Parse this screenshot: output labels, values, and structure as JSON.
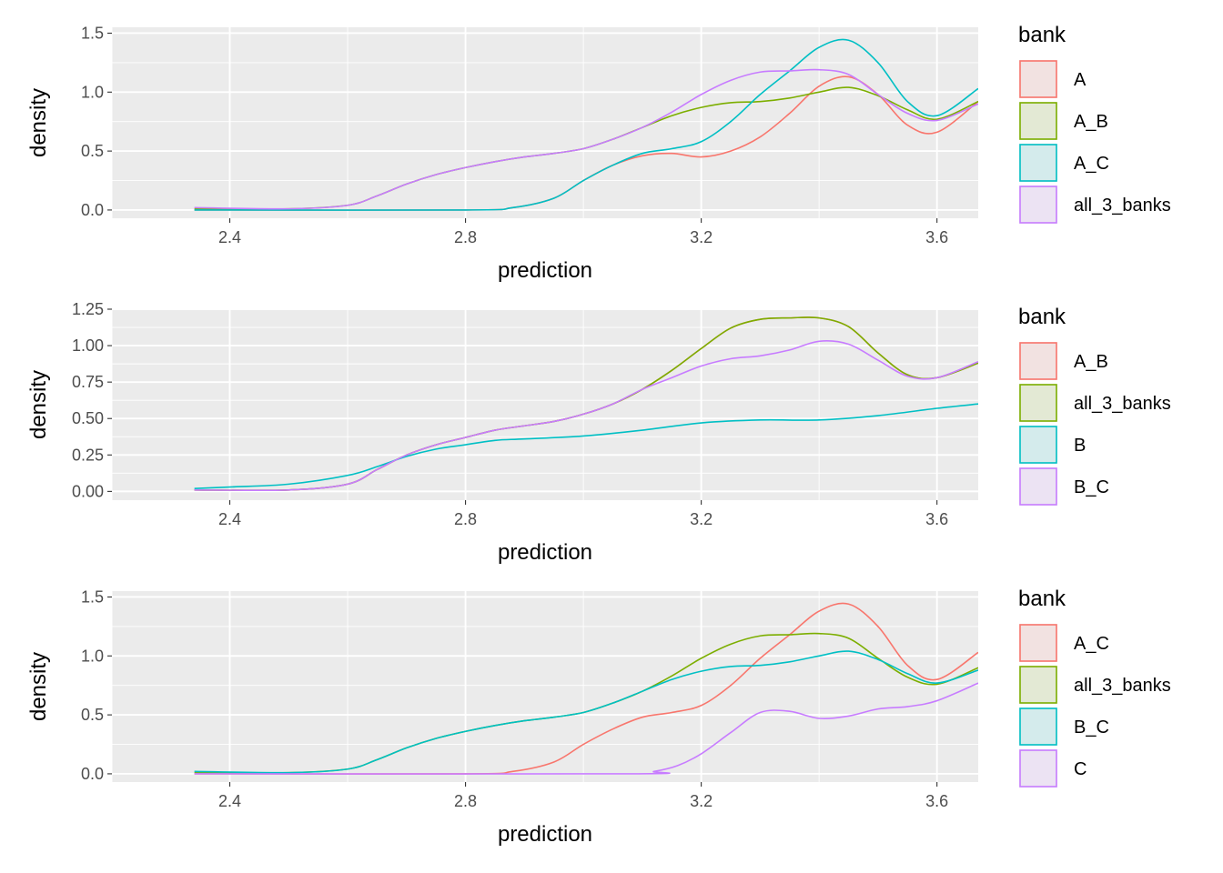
{
  "legend_title": "bank",
  "xlabel": "prediction",
  "ylabel": "density",
  "chart_data": [
    {
      "type": "line",
      "xlabel": "prediction",
      "ylabel": "density",
      "xlim": [
        2.2,
        3.67
      ],
      "ylim": [
        -0.07,
        1.55
      ],
      "x_ticks": [
        2.4,
        2.8,
        3.2,
        3.6
      ],
      "x_tick_labels": [
        "2.4",
        "2.8",
        "3.2",
        "3.6"
      ],
      "y_ticks": [
        0,
        0.5,
        1,
        1.5
      ],
      "y_tick_labels": [
        "0.0",
        "0.5",
        "1.0",
        "1.5"
      ],
      "grid": true,
      "legend_title": "bank",
      "legend_position": "right",
      "series": [
        {
          "name": "A",
          "color": "#F8766D",
          "x": [
            2.34,
            2.8,
            2.88,
            2.95,
            3.0,
            3.05,
            3.1,
            3.15,
            3.2,
            3.25,
            3.3,
            3.35,
            3.4,
            3.45,
            3.5,
            3.55,
            3.6,
            3.67
          ],
          "y": [
            0.0,
            0.0,
            0.02,
            0.1,
            0.25,
            0.38,
            0.46,
            0.48,
            0.45,
            0.5,
            0.62,
            0.82,
            1.05,
            1.13,
            0.98,
            0.72,
            0.66,
            0.92
          ]
        },
        {
          "name": "A_B",
          "color": "#7CAE00",
          "x": [
            2.34,
            2.5,
            2.6,
            2.65,
            2.7,
            2.75,
            2.8,
            2.85,
            2.9,
            2.95,
            3.0,
            3.05,
            3.1,
            3.15,
            3.2,
            3.25,
            3.3,
            3.35,
            3.4,
            3.45,
            3.5,
            3.55,
            3.6,
            3.67
          ],
          "y": [
            0.01,
            0.01,
            0.04,
            0.12,
            0.22,
            0.3,
            0.36,
            0.41,
            0.45,
            0.48,
            0.52,
            0.6,
            0.7,
            0.8,
            0.87,
            0.91,
            0.92,
            0.95,
            1.0,
            1.04,
            0.97,
            0.85,
            0.77,
            0.92
          ]
        },
        {
          "name": "A_C",
          "color": "#00BFC4",
          "x": [
            2.34,
            2.8,
            2.88,
            2.95,
            3.0,
            3.05,
            3.1,
            3.15,
            3.2,
            3.25,
            3.3,
            3.35,
            3.4,
            3.45,
            3.5,
            3.55,
            3.6,
            3.67
          ],
          "y": [
            0.0,
            0.0,
            0.02,
            0.1,
            0.25,
            0.38,
            0.48,
            0.52,
            0.58,
            0.75,
            0.98,
            1.18,
            1.38,
            1.44,
            1.25,
            0.92,
            0.8,
            1.03
          ]
        },
        {
          "name": "all_3_banks",
          "color": "#C77CFF",
          "x": [
            2.34,
            2.5,
            2.6,
            2.65,
            2.7,
            2.75,
            2.8,
            2.85,
            2.9,
            2.95,
            3.0,
            3.05,
            3.1,
            3.15,
            3.2,
            3.25,
            3.3,
            3.35,
            3.4,
            3.45,
            3.5,
            3.55,
            3.6,
            3.67
          ],
          "y": [
            0.02,
            0.01,
            0.04,
            0.12,
            0.22,
            0.3,
            0.36,
            0.41,
            0.45,
            0.48,
            0.52,
            0.6,
            0.7,
            0.83,
            0.98,
            1.1,
            1.17,
            1.18,
            1.19,
            1.15,
            0.98,
            0.82,
            0.76,
            0.9
          ]
        }
      ]
    },
    {
      "type": "line",
      "xlabel": "prediction",
      "ylabel": "density",
      "xlim": [
        2.2,
        3.67
      ],
      "ylim": [
        -0.06,
        1.25
      ],
      "x_ticks": [
        2.4,
        2.8,
        3.2,
        3.6
      ],
      "x_tick_labels": [
        "2.4",
        "2.8",
        "3.2",
        "3.6"
      ],
      "y_ticks": [
        0,
        0.25,
        0.5,
        0.75,
        1.0,
        1.25
      ],
      "y_tick_labels": [
        "0.00",
        "0.25",
        "0.50",
        "0.75",
        "1.00",
        "1.25"
      ],
      "grid": true,
      "legend_title": "bank",
      "legend_position": "right",
      "series": [
        {
          "name": "A_B",
          "color": "#F8766D",
          "x": [
            2.34,
            2.5,
            2.6,
            2.65,
            2.7,
            2.75,
            2.8,
            2.85,
            2.9,
            2.95,
            3.0,
            3.05,
            3.1,
            3.15,
            3.2,
            3.25,
            3.3,
            3.35,
            3.4,
            3.45,
            3.5,
            3.55,
            3.6,
            3.67
          ],
          "y": [
            0.01,
            0.01,
            0.05,
            0.15,
            0.25,
            0.32,
            0.37,
            0.42,
            0.45,
            0.48,
            0.53,
            0.6,
            0.7,
            0.83,
            0.98,
            1.12,
            1.18,
            1.19,
            1.19,
            1.13,
            0.95,
            0.8,
            0.78,
            0.88
          ]
        },
        {
          "name": "all_3_banks",
          "color": "#7CAE00",
          "x": [
            2.34,
            2.5,
            2.6,
            2.65,
            2.7,
            2.75,
            2.8,
            2.85,
            2.9,
            2.95,
            3.0,
            3.05,
            3.1,
            3.15,
            3.2,
            3.25,
            3.3,
            3.35,
            3.4,
            3.45,
            3.5,
            3.55,
            3.6,
            3.67
          ],
          "y": [
            0.01,
            0.01,
            0.05,
            0.15,
            0.25,
            0.32,
            0.37,
            0.42,
            0.45,
            0.48,
            0.53,
            0.6,
            0.7,
            0.83,
            0.98,
            1.12,
            1.18,
            1.19,
            1.19,
            1.13,
            0.95,
            0.8,
            0.78,
            0.88
          ]
        },
        {
          "name": "B",
          "color": "#00BFC4",
          "x": [
            2.34,
            2.4,
            2.5,
            2.6,
            2.65,
            2.7,
            2.75,
            2.8,
            2.85,
            2.9,
            3.0,
            3.1,
            3.2,
            3.3,
            3.4,
            3.5,
            3.6,
            3.67
          ],
          "y": [
            0.02,
            0.03,
            0.05,
            0.11,
            0.17,
            0.24,
            0.29,
            0.32,
            0.35,
            0.36,
            0.38,
            0.42,
            0.47,
            0.49,
            0.49,
            0.52,
            0.57,
            0.6
          ]
        },
        {
          "name": "B_C",
          "color": "#C77CFF",
          "x": [
            2.34,
            2.5,
            2.6,
            2.65,
            2.7,
            2.75,
            2.8,
            2.85,
            2.9,
            2.95,
            3.0,
            3.05,
            3.1,
            3.15,
            3.2,
            3.25,
            3.3,
            3.35,
            3.4,
            3.45,
            3.5,
            3.55,
            3.6,
            3.67
          ],
          "y": [
            0.01,
            0.01,
            0.05,
            0.15,
            0.25,
            0.32,
            0.37,
            0.42,
            0.45,
            0.48,
            0.53,
            0.6,
            0.7,
            0.78,
            0.86,
            0.91,
            0.93,
            0.97,
            1.03,
            1.01,
            0.9,
            0.79,
            0.78,
            0.89
          ]
        }
      ]
    },
    {
      "type": "line",
      "xlabel": "prediction",
      "ylabel": "density",
      "xlim": [
        2.2,
        3.67
      ],
      "ylim": [
        -0.07,
        1.55
      ],
      "x_ticks": [
        2.4,
        2.8,
        3.2,
        3.6
      ],
      "x_tick_labels": [
        "2.4",
        "2.8",
        "3.2",
        "3.6"
      ],
      "y_ticks": [
        0,
        0.5,
        1,
        1.5
      ],
      "y_tick_labels": [
        "0.0",
        "0.5",
        "1.0",
        "1.5"
      ],
      "grid": true,
      "legend_title": "bank",
      "legend_position": "right",
      "series": [
        {
          "name": "A_C",
          "color": "#F8766D",
          "x": [
            2.34,
            2.8,
            2.88,
            2.95,
            3.0,
            3.05,
            3.1,
            3.15,
            3.2,
            3.25,
            3.3,
            3.35,
            3.4,
            3.45,
            3.5,
            3.55,
            3.6,
            3.67
          ],
          "y": [
            0.0,
            0.0,
            0.02,
            0.1,
            0.25,
            0.38,
            0.48,
            0.52,
            0.58,
            0.75,
            0.98,
            1.18,
            1.38,
            1.44,
            1.25,
            0.92,
            0.8,
            1.03
          ]
        },
        {
          "name": "all_3_banks",
          "color": "#7CAE00",
          "x": [
            2.34,
            2.5,
            2.6,
            2.65,
            2.7,
            2.75,
            2.8,
            2.85,
            2.9,
            2.95,
            3.0,
            3.05,
            3.1,
            3.15,
            3.2,
            3.25,
            3.3,
            3.35,
            3.4,
            3.45,
            3.5,
            3.55,
            3.6,
            3.67
          ],
          "y": [
            0.01,
            0.01,
            0.04,
            0.12,
            0.22,
            0.3,
            0.36,
            0.41,
            0.45,
            0.48,
            0.52,
            0.6,
            0.7,
            0.83,
            0.98,
            1.1,
            1.17,
            1.18,
            1.19,
            1.15,
            0.98,
            0.82,
            0.76,
            0.9
          ]
        },
        {
          "name": "B_C",
          "color": "#00BFC4",
          "x": [
            2.34,
            2.5,
            2.6,
            2.65,
            2.7,
            2.75,
            2.8,
            2.85,
            2.9,
            2.95,
            3.0,
            3.05,
            3.1,
            3.15,
            3.2,
            3.25,
            3.3,
            3.35,
            3.4,
            3.45,
            3.5,
            3.55,
            3.6,
            3.67
          ],
          "y": [
            0.02,
            0.01,
            0.04,
            0.12,
            0.22,
            0.3,
            0.36,
            0.41,
            0.45,
            0.48,
            0.52,
            0.6,
            0.7,
            0.8,
            0.87,
            0.91,
            0.92,
            0.95,
            1.0,
            1.04,
            0.97,
            0.85,
            0.77,
            0.88
          ]
        },
        {
          "name": "C",
          "color": "#C77CFF",
          "x": [
            2.34,
            3.08,
            3.12,
            3.16,
            3.2,
            3.25,
            3.3,
            3.35,
            3.4,
            3.45,
            3.5,
            3.55,
            3.6,
            3.67
          ],
          "y": [
            0.0,
            0.0,
            0.02,
            0.07,
            0.17,
            0.35,
            0.52,
            0.53,
            0.47,
            0.49,
            0.55,
            0.57,
            0.62,
            0.77
          ]
        }
      ]
    }
  ]
}
